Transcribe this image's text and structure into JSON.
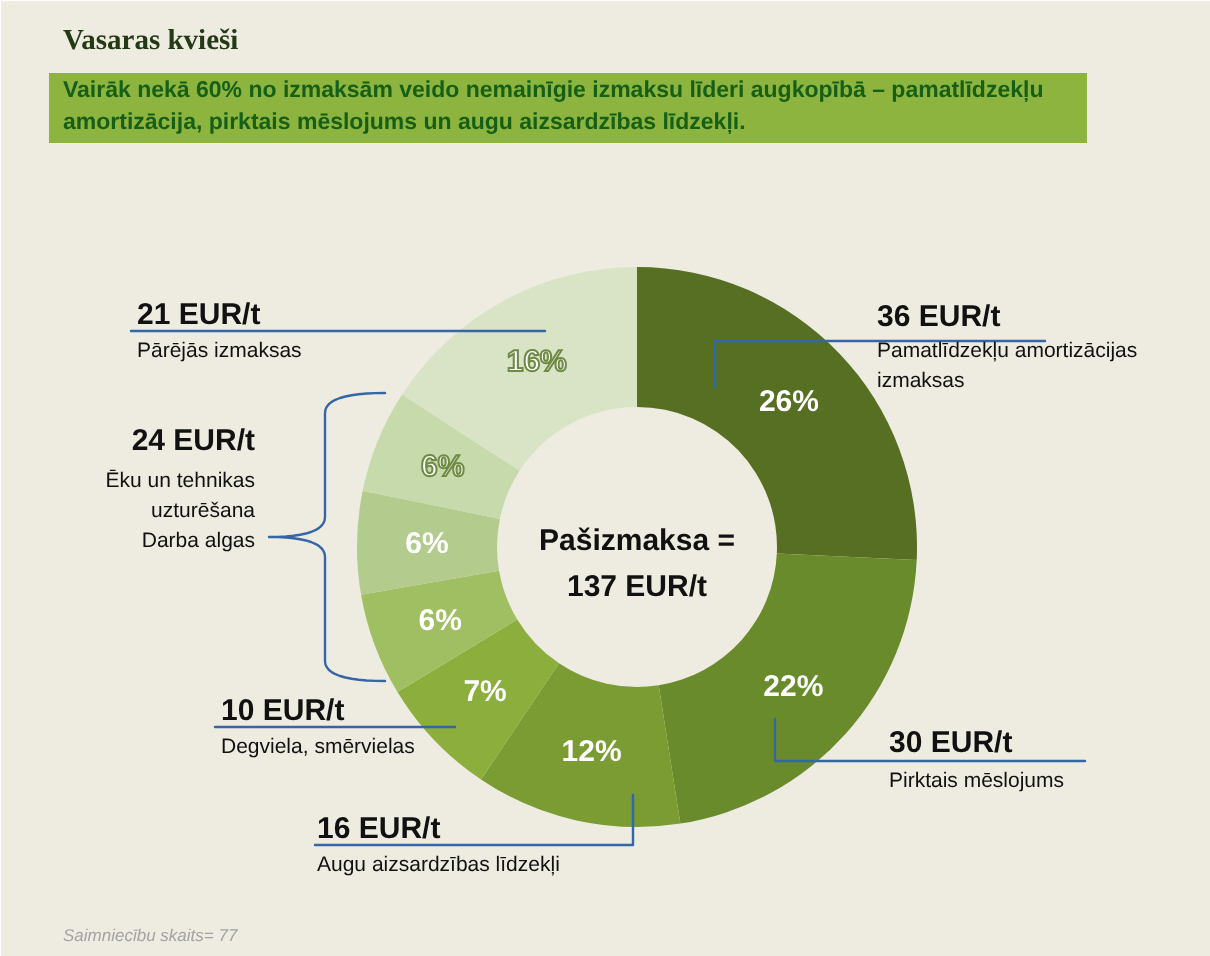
{
  "chart_data": {
    "type": "donut",
    "title": "Vasaras kvieši",
    "subtitle": "Vairāk nekā 60% no izmaksām veido nemainīgie izmaksu līderi augkopībā – pamatlīdzekļu amortizācija, pirktais mēslojums un augu aizsardzības līdzekļi.",
    "categories": [
      "Pamatlīdzekļu amortizācijas izmaksas",
      "Pirktais mēslojums",
      "Augu aizsardzības līdzekļi",
      "Degviela, smērvielas",
      null,
      null,
      null,
      "Pārējās izmaksas"
    ],
    "values": [
      26,
      22,
      12,
      7,
      6,
      6,
      6,
      16
    ],
    "value_labels": [
      "26%",
      "22%",
      "12%",
      "7%",
      "6%",
      "6%",
      "6%",
      "16%"
    ],
    "colors": [
      "#566f22",
      "#6a8b2b",
      "#7b9b33",
      "#8bae3c",
      "#9fbf62",
      "#b3cb8d",
      "#c6daab",
      "#d9e4c7"
    ],
    "annotations": [
      "36 EUR/t",
      "30 EUR/t",
      "16 EUR/t",
      "10 EUR/t",
      "24 EUR/t",
      "Ēku un tehnikas uzturēšana",
      "Darba algas",
      "21 EUR/t",
      "Pašizmaksa = 137 EUR/t",
      "Saimniecību skaits= 77"
    ]
  }
}
